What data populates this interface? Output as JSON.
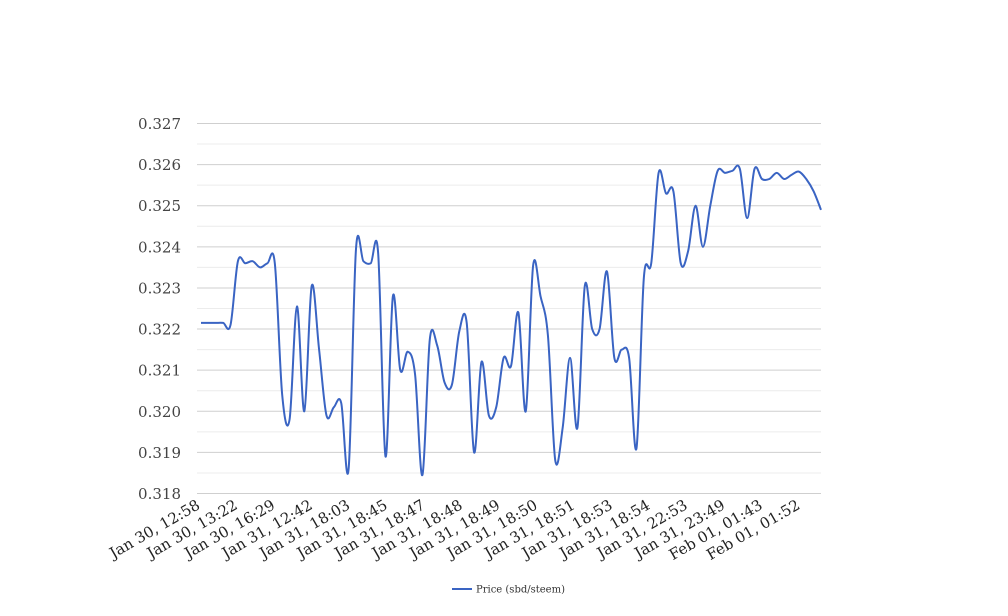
{
  "chart_data": {
    "type": "line",
    "title": "",
    "xlabel": "",
    "ylabel": "",
    "ylim": [
      0.318,
      0.327
    ],
    "yticks": [
      "0.318",
      "0.319",
      "0.320",
      "0.321",
      "0.322",
      "0.323",
      "0.324",
      "0.325",
      "0.326",
      "0.327"
    ],
    "grid": true,
    "legend_position": "bottom",
    "x_tick_labels": [
      "Jan 30, 12:58",
      "Jan 30, 13:22",
      "Jan 30, 16:29",
      "Jan 31, 12:42",
      "Jan 31, 18:03",
      "Jan 31, 18:45",
      "Jan 31, 18:47",
      "Jan 31, 18:48",
      "Jan 31, 18:49",
      "Jan 31, 18:50",
      "Jan 31, 18:51",
      "Jan 31, 18:53",
      "Jan 31, 18:54",
      "Jan 31, 22:53",
      "Jan 31, 23:49",
      "Feb 01, 01:43",
      "Feb 01, 01:52"
    ],
    "series": [
      {
        "name": "Price (sbd/steem)",
        "color": "#3a64c3",
        "values": [
          0.32215,
          0.32215,
          0.32215,
          0.32215,
          0.3221,
          0.32365,
          0.3236,
          0.32365,
          0.3235,
          0.3236,
          0.3236,
          0.3204,
          0.3198,
          0.32255,
          0.32,
          0.32305,
          0.3215,
          0.3199,
          0.3201,
          0.3202,
          0.3186,
          0.32395,
          0.32365,
          0.3236,
          0.32385,
          0.3189,
          0.3228,
          0.321,
          0.32145,
          0.3209,
          0.31845,
          0.32175,
          0.3216,
          0.3207,
          0.32065,
          0.32195,
          0.32215,
          0.319,
          0.3212,
          0.3199,
          0.3201,
          0.3213,
          0.3211,
          0.3224,
          0.32,
          0.32355,
          0.3228,
          0.32185,
          0.3188,
          0.3196,
          0.3213,
          0.3196,
          0.32305,
          0.322,
          0.322,
          0.3234,
          0.3213,
          0.3215,
          0.3213,
          0.3191,
          0.32325,
          0.3236,
          0.3258,
          0.3253,
          0.32535,
          0.3236,
          0.3239,
          0.325,
          0.324,
          0.325,
          0.32585,
          0.3258,
          0.32585,
          0.3259,
          0.3247,
          0.3259,
          0.32565,
          0.32565,
          0.3258,
          0.32565,
          0.32575,
          0.32583,
          0.32565,
          0.32535,
          0.3249
        ]
      }
    ]
  }
}
